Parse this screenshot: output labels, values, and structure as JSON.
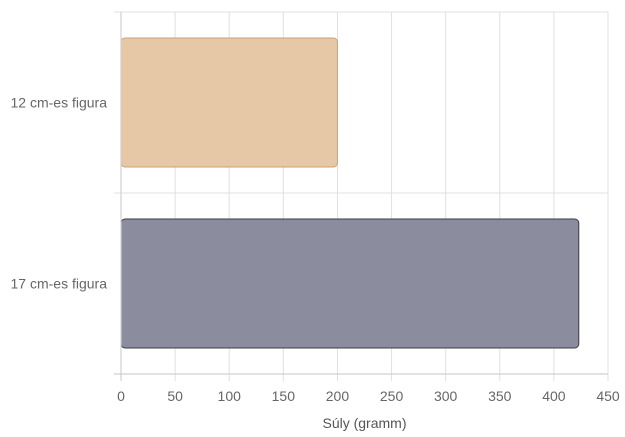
{
  "chart_data": {
    "type": "bar",
    "orientation": "horizontal",
    "categories": [
      "12 cm-es figura",
      "17 cm-es figura"
    ],
    "values": [
      200,
      423
    ],
    "xlabel": "Súly (gramm)",
    "ylabel": "",
    "xlim": [
      0,
      450
    ],
    "x_ticks": [
      0,
      50,
      100,
      150,
      200,
      250,
      300,
      350,
      400,
      450
    ],
    "grid": true,
    "legend": "none",
    "colors": {
      "bar_fill": [
        "#e6c7a6",
        "#8b8c9d"
      ],
      "bar_stroke": [
        "#c9a27c",
        "#3b3c4a"
      ],
      "grid": "#e0e0e0",
      "axis": "#d0d0d0",
      "text": "#666666"
    }
  }
}
